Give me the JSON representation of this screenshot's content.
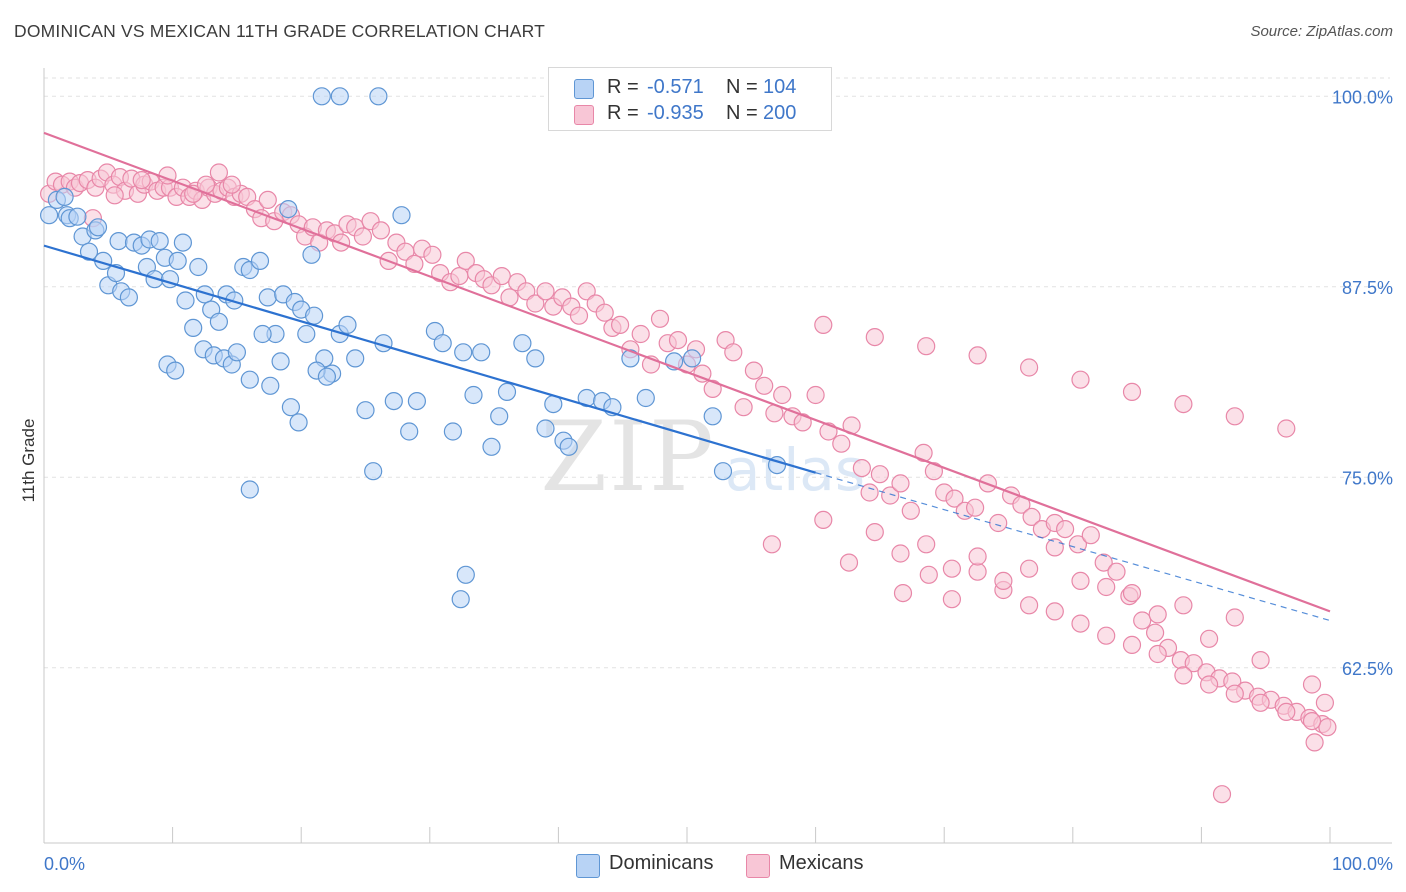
{
  "title": "DOMINICAN VS MEXICAN 11TH GRADE CORRELATION CHART",
  "source": "Source: ZipAtlas.com",
  "watermark": {
    "zip": "ZIP",
    "atlas": "atlas"
  },
  "colors": {
    "dominican_fill": "#b8d3f5",
    "dominican_stroke": "#5f96d4",
    "dominican_line": "#2d72d0",
    "mexican_fill": "#f8c6d6",
    "mexican_stroke": "#e887a8",
    "mexican_line": "#e0709a",
    "value_text": "#3f77c9",
    "grid": "#e2e2e2"
  },
  "legend": {
    "rows": [
      {
        "series": "Dominicans",
        "r_label": "R =",
        "r_value": "-0.571",
        "n_label": "N =",
        "n_value": "104"
      },
      {
        "series": "Mexicans",
        "r_label": "R =",
        "r_value": "-0.935",
        "n_label": "N =",
        "n_value": "200"
      }
    ]
  },
  "bottom_legend": [
    "Dominicans",
    "Mexicans"
  ],
  "chart_data": {
    "type": "scatter",
    "title": "DOMINICAN VS MEXICAN 11TH GRADE CORRELATION CHART",
    "xlabel": "",
    "ylabel": "11th Grade",
    "xlim": [
      0,
      100
    ],
    "ylim": [
      51,
      101.2
    ],
    "x_tick_labels": [
      "0.0%",
      "100.0%"
    ],
    "y_ticks": [
      62.5,
      75.0,
      87.5,
      100.0
    ],
    "y_tick_labels": [
      "62.5%",
      "75.0%",
      "87.5%",
      "100.0%"
    ],
    "grid": true,
    "legend_position": "top-center",
    "series": [
      {
        "name": "Dominicans",
        "r": -0.571,
        "n": 104,
        "trend": {
          "x0": 0,
          "y0": 90.2,
          "x1": 60,
          "y1": 75.3,
          "dashed_to_x": 100,
          "dashed_to_y": 65.6
        },
        "points": [
          [
            0.4,
            92.2
          ],
          [
            1,
            93.2
          ],
          [
            1.6,
            93.4
          ],
          [
            1.8,
            92.2
          ],
          [
            2,
            92.0
          ],
          [
            2.6,
            92.1
          ],
          [
            3,
            90.8
          ],
          [
            3.5,
            89.8
          ],
          [
            4,
            91.2
          ],
          [
            4.2,
            91.4
          ],
          [
            4.6,
            89.2
          ],
          [
            5,
            87.6
          ],
          [
            5.6,
            88.4
          ],
          [
            6,
            87.2
          ],
          [
            6.6,
            86.8
          ],
          [
            5.8,
            90.5
          ],
          [
            7,
            90.4
          ],
          [
            7.6,
            90.2
          ],
          [
            8,
            88.8
          ],
          [
            8.6,
            88.0
          ],
          [
            8.2,
            90.6
          ],
          [
            9,
            90.5
          ],
          [
            9.4,
            89.4
          ],
          [
            9.8,
            88.0
          ],
          [
            10.4,
            89.2
          ],
          [
            10.8,
            90.4
          ],
          [
            11,
            86.6
          ],
          [
            12,
            88.8
          ],
          [
            12.5,
            87.0
          ],
          [
            13,
            86.0
          ],
          [
            13.6,
            85.2
          ],
          [
            14.2,
            87.0
          ],
          [
            14.8,
            86.6
          ],
          [
            15.5,
            88.8
          ],
          [
            16,
            88.6
          ],
          [
            16.8,
            89.2
          ],
          [
            17.4,
            86.8
          ],
          [
            18,
            84.4
          ],
          [
            18.6,
            87.0
          ],
          [
            19,
            92.6
          ],
          [
            19.5,
            86.5
          ],
          [
            20,
            86.0
          ],
          [
            20.8,
            89.6
          ],
          [
            21,
            85.6
          ],
          [
            21.8,
            82.8
          ],
          [
            22.4,
            81.8
          ],
          [
            23,
            84.4
          ],
          [
            9.6,
            82.4
          ],
          [
            10.2,
            82.0
          ],
          [
            11.6,
            84.8
          ],
          [
            12.4,
            83.4
          ],
          [
            13.2,
            83.0
          ],
          [
            14,
            82.8
          ],
          [
            14.6,
            82.4
          ],
          [
            15,
            83.2
          ],
          [
            16,
            81.4
          ],
          [
            17,
            84.4
          ],
          [
            17.6,
            81.0
          ],
          [
            18.4,
            82.6
          ],
          [
            19.2,
            79.6
          ],
          [
            19.8,
            78.6
          ],
          [
            20.4,
            84.4
          ],
          [
            21.2,
            82.0
          ],
          [
            22,
            81.6
          ],
          [
            23.6,
            85.0
          ],
          [
            24.2,
            82.8
          ],
          [
            25,
            79.4
          ],
          [
            25.6,
            75.4
          ],
          [
            26.4,
            83.8
          ],
          [
            27.2,
            80.0
          ],
          [
            27.8,
            92.2
          ],
          [
            28.4,
            78.0
          ],
          [
            29,
            80.0
          ],
          [
            30.4,
            84.6
          ],
          [
            31,
            83.8
          ],
          [
            31.8,
            78.0
          ],
          [
            32.6,
            83.2
          ],
          [
            33.4,
            80.4
          ],
          [
            34,
            83.2
          ],
          [
            34.8,
            77.0
          ],
          [
            35.4,
            79.0
          ],
          [
            36,
            80.6
          ],
          [
            37.2,
            83.8
          ],
          [
            38.2,
            82.8
          ],
          [
            39,
            78.2
          ],
          [
            39.6,
            79.8
          ],
          [
            40.4,
            77.4
          ],
          [
            40.8,
            77.0
          ],
          [
            42.2,
            80.2
          ],
          [
            43.4,
            80.0
          ],
          [
            44.2,
            79.6
          ],
          [
            45.6,
            82.8
          ],
          [
            46.8,
            80.2
          ],
          [
            49,
            82.6
          ],
          [
            50.4,
            82.8
          ],
          [
            52,
            79.0
          ],
          [
            52.8,
            75.4
          ],
          [
            57,
            75.8
          ],
          [
            32.8,
            68.6
          ],
          [
            32.4,
            67.0
          ],
          [
            16,
            74.2
          ],
          [
            21.6,
            100
          ],
          [
            23,
            100
          ],
          [
            26,
            100
          ]
        ]
      },
      {
        "name": "Mexicans",
        "r": -0.935,
        "n": 200,
        "trend": {
          "x0": 0,
          "y0": 97.6,
          "x1": 100,
          "y1": 66.2
        },
        "points": [
          [
            0.4,
            93.6
          ],
          [
            0.9,
            94.4
          ],
          [
            1.4,
            94.2
          ],
          [
            2,
            94.4
          ],
          [
            2.4,
            94.0
          ],
          [
            2.8,
            94.3
          ],
          [
            3.4,
            94.5
          ],
          [
            4,
            94.0
          ],
          [
            4.4,
            94.6
          ],
          [
            4.9,
            95.0
          ],
          [
            5.4,
            94.2
          ],
          [
            5.9,
            94.7
          ],
          [
            6.3,
            93.8
          ],
          [
            6.8,
            94.6
          ],
          [
            7.3,
            93.6
          ],
          [
            7.8,
            94.2
          ],
          [
            8.3,
            94.4
          ],
          [
            8.8,
            93.8
          ],
          [
            9.3,
            94.0
          ],
          [
            9.8,
            94.0
          ],
          [
            10.3,
            93.4
          ],
          [
            10.8,
            94.0
          ],
          [
            11.3,
            93.4
          ],
          [
            11.8,
            93.8
          ],
          [
            12.3,
            93.2
          ],
          [
            12.8,
            94.0
          ],
          [
            13.3,
            93.6
          ],
          [
            13.8,
            93.8
          ],
          [
            14.3,
            94.0
          ],
          [
            14.8,
            93.4
          ],
          [
            15.3,
            93.6
          ],
          [
            15.8,
            93.4
          ],
          [
            3.8,
            92.0
          ],
          [
            5.5,
            93.5
          ],
          [
            7.6,
            94.5
          ],
          [
            9.6,
            94.8
          ],
          [
            11.6,
            93.6
          ],
          [
            12.6,
            94.2
          ],
          [
            13.6,
            95.0
          ],
          [
            14.6,
            94.2
          ],
          [
            16.4,
            92.6
          ],
          [
            16.9,
            92.0
          ],
          [
            17.4,
            93.2
          ],
          [
            17.9,
            91.8
          ],
          [
            18.6,
            92.4
          ],
          [
            19.2,
            92.2
          ],
          [
            19.8,
            91.6
          ],
          [
            20.3,
            90.8
          ],
          [
            20.9,
            91.4
          ],
          [
            21.4,
            90.4
          ],
          [
            22,
            91.2
          ],
          [
            22.6,
            91.0
          ],
          [
            23.1,
            90.4
          ],
          [
            23.6,
            91.6
          ],
          [
            24.2,
            91.4
          ],
          [
            24.8,
            90.8
          ],
          [
            25.4,
            91.8
          ],
          [
            26.2,
            91.2
          ],
          [
            26.8,
            89.2
          ],
          [
            27.4,
            90.4
          ],
          [
            28.1,
            89.8
          ],
          [
            28.8,
            89.0
          ],
          [
            29.4,
            90.0
          ],
          [
            30.2,
            89.6
          ],
          [
            30.8,
            88.4
          ],
          [
            31.6,
            87.8
          ],
          [
            32.3,
            88.2
          ],
          [
            32.8,
            89.2
          ],
          [
            33.6,
            88.4
          ],
          [
            34.2,
            88.0
          ],
          [
            34.8,
            87.6
          ],
          [
            35.6,
            88.2
          ],
          [
            36.2,
            86.8
          ],
          [
            36.8,
            87.8
          ],
          [
            37.5,
            87.2
          ],
          [
            38.2,
            86.4
          ],
          [
            39,
            87.2
          ],
          [
            39.6,
            86.2
          ],
          [
            40.3,
            86.8
          ],
          [
            41,
            86.2
          ],
          [
            41.6,
            85.6
          ],
          [
            42.2,
            87.2
          ],
          [
            42.9,
            86.4
          ],
          [
            43.6,
            85.8
          ],
          [
            44.2,
            84.8
          ],
          [
            44.8,
            85.0
          ],
          [
            45.6,
            83.4
          ],
          [
            46.4,
            84.4
          ],
          [
            47.2,
            82.4
          ],
          [
            47.9,
            85.4
          ],
          [
            48.5,
            83.8
          ],
          [
            49.3,
            84.0
          ],
          [
            50,
            82.4
          ],
          [
            50.7,
            83.4
          ],
          [
            51.2,
            81.8
          ],
          [
            52,
            80.8
          ],
          [
            53,
            84.0
          ],
          [
            53.6,
            83.2
          ],
          [
            54.4,
            79.6
          ],
          [
            55.2,
            82.0
          ],
          [
            56,
            81.0
          ],
          [
            56.8,
            79.2
          ],
          [
            57.4,
            80.4
          ],
          [
            58.2,
            79.0
          ],
          [
            59,
            78.6
          ],
          [
            60,
            80.4
          ],
          [
            61,
            78.0
          ],
          [
            62,
            77.2
          ],
          [
            62.8,
            78.4
          ],
          [
            63.6,
            75.6
          ],
          [
            64.2,
            74.0
          ],
          [
            65,
            75.2
          ],
          [
            65.8,
            73.8
          ],
          [
            66.6,
            74.6
          ],
          [
            67.4,
            72.8
          ],
          [
            68.4,
            76.6
          ],
          [
            69.2,
            75.4
          ],
          [
            70,
            74.0
          ],
          [
            70.8,
            73.6
          ],
          [
            71.6,
            72.8
          ],
          [
            72.4,
            73.0
          ],
          [
            73.4,
            74.6
          ],
          [
            74.2,
            72.0
          ],
          [
            75.2,
            73.8
          ],
          [
            76,
            73.2
          ],
          [
            76.8,
            72.4
          ],
          [
            77.6,
            71.6
          ],
          [
            78.6,
            72.0
          ],
          [
            79.4,
            71.6
          ],
          [
            80.4,
            70.6
          ],
          [
            81.4,
            71.2
          ],
          [
            82.4,
            69.4
          ],
          [
            83.4,
            68.8
          ],
          [
            84.4,
            67.2
          ],
          [
            85.4,
            65.6
          ],
          [
            86.4,
            64.8
          ],
          [
            87.4,
            63.8
          ],
          [
            88.4,
            63.0
          ],
          [
            89.4,
            62.8
          ],
          [
            90.4,
            62.2
          ],
          [
            91.4,
            61.8
          ],
          [
            92.4,
            61.6
          ],
          [
            93.4,
            61.0
          ],
          [
            94.4,
            60.6
          ],
          [
            95.4,
            60.4
          ],
          [
            96.4,
            60.0
          ],
          [
            97.4,
            59.6
          ],
          [
            98.4,
            59.2
          ],
          [
            99.4,
            58.8
          ],
          [
            99.8,
            58.6
          ],
          [
            66.8,
            67.4
          ],
          [
            68.8,
            68.6
          ],
          [
            70.6,
            67.0
          ],
          [
            72.6,
            68.8
          ],
          [
            74.6,
            67.6
          ],
          [
            76.6,
            66.6
          ],
          [
            78.6,
            66.2
          ],
          [
            80.6,
            65.4
          ],
          [
            82.6,
            64.6
          ],
          [
            84.6,
            64.0
          ],
          [
            86.6,
            63.4
          ],
          [
            88.6,
            62.0
          ],
          [
            90.6,
            61.4
          ],
          [
            92.6,
            60.8
          ],
          [
            94.6,
            60.2
          ],
          [
            96.6,
            59.6
          ],
          [
            98.6,
            59.0
          ],
          [
            60.6,
            85.0
          ],
          [
            64.6,
            84.2
          ],
          [
            68.6,
            83.6
          ],
          [
            72.6,
            83.0
          ],
          [
            76.6,
            82.2
          ],
          [
            80.6,
            81.4
          ],
          [
            84.6,
            80.6
          ],
          [
            88.6,
            79.8
          ],
          [
            92.6,
            79.0
          ],
          [
            96.6,
            78.2
          ],
          [
            62.6,
            69.4
          ],
          [
            66.6,
            70.0
          ],
          [
            70.6,
            69.0
          ],
          [
            74.6,
            68.2
          ],
          [
            78.6,
            70.4
          ],
          [
            82.6,
            67.8
          ],
          [
            86.6,
            66.0
          ],
          [
            90.6,
            64.4
          ],
          [
            94.6,
            63.0
          ],
          [
            98.6,
            61.4
          ],
          [
            91.6,
            54.2
          ],
          [
            98.8,
            57.6
          ],
          [
            99.6,
            60.2
          ],
          [
            56.6,
            70.6
          ],
          [
            60.6,
            72.2
          ],
          [
            64.6,
            71.4
          ],
          [
            68.6,
            70.6
          ],
          [
            72.6,
            69.8
          ],
          [
            76.6,
            69.0
          ],
          [
            80.6,
            68.2
          ],
          [
            84.6,
            67.4
          ],
          [
            88.6,
            66.6
          ],
          [
            92.6,
            65.8
          ]
        ]
      }
    ]
  }
}
